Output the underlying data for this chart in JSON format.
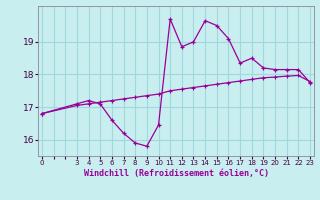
{
  "xlabel": "Windchill (Refroidissement éolien,°C)",
  "background_color": "#c8eef0",
  "grid_color": "#a0d8dc",
  "line_color": "#990099",
  "x_hours": [
    0,
    3,
    4,
    5,
    6,
    7,
    8,
    9,
    10,
    11,
    12,
    13,
    14,
    15,
    16,
    17,
    18,
    19,
    20,
    21,
    22,
    23
  ],
  "windchill_values": [
    16.8,
    17.1,
    17.2,
    17.1,
    16.6,
    16.2,
    15.9,
    15.8,
    16.45,
    19.7,
    18.85,
    19.0,
    19.65,
    19.5,
    19.1,
    18.35,
    18.5,
    18.2,
    18.15,
    18.15,
    18.15,
    17.75
  ],
  "ref_values": [
    16.8,
    17.05,
    17.1,
    17.15,
    17.2,
    17.25,
    17.3,
    17.35,
    17.4,
    17.5,
    17.55,
    17.6,
    17.65,
    17.7,
    17.75,
    17.8,
    17.85,
    17.9,
    17.92,
    17.95,
    17.97,
    17.78
  ],
  "ylim": [
    15.5,
    20.1
  ],
  "yticks": [
    16,
    17,
    18,
    19
  ],
  "xlim": [
    -0.3,
    23.3
  ]
}
